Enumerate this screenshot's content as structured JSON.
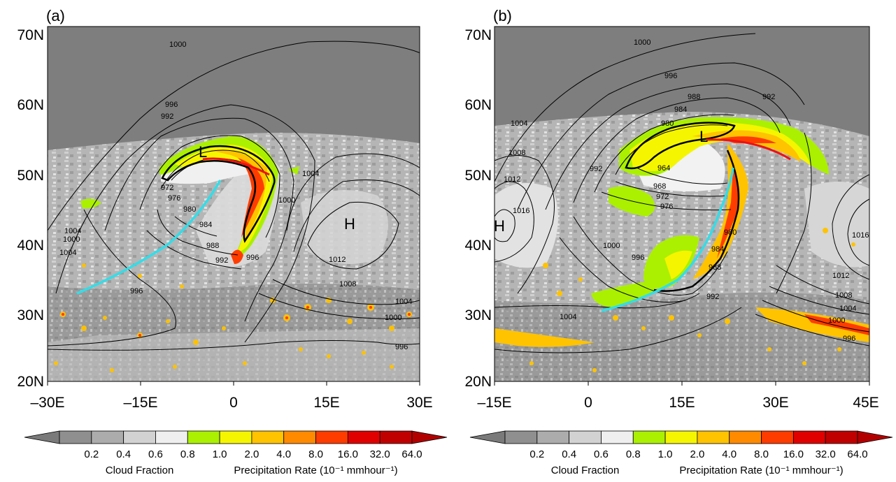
{
  "panels": [
    {
      "id": "a",
      "label": "(a)",
      "x_ticks": [
        "–30E",
        "–15E",
        "0",
        "15E",
        "30E"
      ],
      "y_ticks": [
        "70N",
        "60N",
        "50N",
        "40N",
        "30N",
        "20N"
      ],
      "isobar_labels": [
        "1000",
        "996",
        "992",
        "1004",
        "972",
        "976",
        "980",
        "984",
        "988",
        "992",
        "996",
        "1000",
        "1004",
        "1008",
        "1012",
        "1000",
        "1004",
        "996",
        "996",
        "1004",
        "1000"
      ],
      "pressure_centers": [
        "L",
        "H"
      ]
    },
    {
      "id": "b",
      "label": "(b)",
      "x_ticks": [
        "–15E",
        "0",
        "15E",
        "30E",
        "45E"
      ],
      "y_ticks": [
        "70N",
        "60N",
        "50N",
        "40N",
        "30N",
        "20N"
      ],
      "isobar_labels": [
        "1000",
        "996",
        "988",
        "992",
        "984",
        "980",
        "1004",
        "1008",
        "1012",
        "1016",
        "992",
        "964",
        "968",
        "972",
        "976",
        "1000",
        "996",
        "980",
        "984",
        "988",
        "992",
        "1004",
        "1016",
        "1012",
        "1008",
        "1004",
        "1000",
        "996"
      ],
      "pressure_centers": [
        "L",
        "H"
      ]
    }
  ],
  "colorbar": {
    "ticks": [
      "0.2",
      "0.4",
      "0.6",
      "0.8",
      "1.0",
      "2.0",
      "4.0",
      "8.0",
      "16.0",
      "32.0",
      "64.0"
    ],
    "cloud_title": "Cloud Fraction",
    "precip_title": "Precipitation Rate (10⁻¹ mmhour⁻¹)",
    "colors": [
      "#7a7a7a",
      "#8f8f8f",
      "#acacac",
      "#d2d2d2",
      "#efefef",
      "#aaf000",
      "#f5f500",
      "#ffc300",
      "#ff8a00",
      "#ff3c00",
      "#e00000",
      "#c00000",
      "#b20000"
    ]
  },
  "colors": {
    "cold_front": "#33dde8",
    "warm_front": "#ee1111",
    "sky_gray": "#7e7e7e"
  }
}
